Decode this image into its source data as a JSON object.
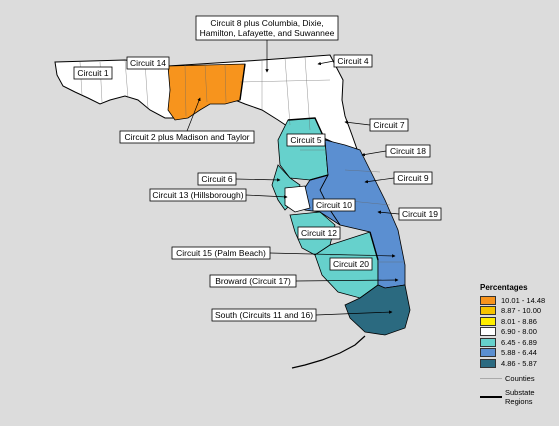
{
  "colors": {
    "background": "#dcdcdc",
    "orange": "#f7941d",
    "yellow_dark": "#f5c400",
    "yellow_light": "#ffee00",
    "white": "#ffffff",
    "teal_light": "#66d1cc",
    "blue_mid": "#5b8fd1",
    "teal_dark": "#2b6a80"
  },
  "legend": {
    "title": "Percentages",
    "items": [
      {
        "label": "10.01 - 14.48",
        "color": "#f7941d"
      },
      {
        "label": "8.87 - 10.00",
        "color": "#f5c400"
      },
      {
        "label": "8.01 - 8.86",
        "color": "#ffee00"
      },
      {
        "label": "6.90 - 8.00",
        "color": "#ffffff"
      },
      {
        "label": "6.45 - 6.89",
        "color": "#66d1cc"
      },
      {
        "label": "5.88 - 6.44",
        "color": "#5b8fd1"
      },
      {
        "label": "4.86 - 5.87",
        "color": "#2b6a80"
      }
    ],
    "counties_label": "Counties",
    "substate_label_1": "Substate",
    "substate_label_2": "Regions"
  },
  "labels": {
    "circuit_8_line1": "Circuit 8 plus Columbia, Dixie,",
    "circuit_8_line2": "Hamilton, Lafayette, and Suwannee",
    "circuit_1": "Circuit 1",
    "circuit_14": "Circuit 14",
    "circuit_4": "Circuit 4",
    "circuit_2": "Circuit 2 plus Madison and Taylor",
    "circuit_7": "Circuit 7",
    "circuit_5": "Circuit 5",
    "circuit_18": "Circuit 18",
    "circuit_6": "Circuit 6",
    "circuit_9": "Circuit 9",
    "circuit_13": "Circuit 13 (Hillsborough)",
    "circuit_10": "Circuit 10",
    "circuit_19": "Circuit 19",
    "circuit_12": "Circuit 12",
    "circuit_15": "Circuit 15 (Palm Beach)",
    "circuit_20": "Circuit 20",
    "circuit_17": "Broward (Circuit 17)",
    "circuit_16": "South (Circuits 11 and 16)"
  }
}
